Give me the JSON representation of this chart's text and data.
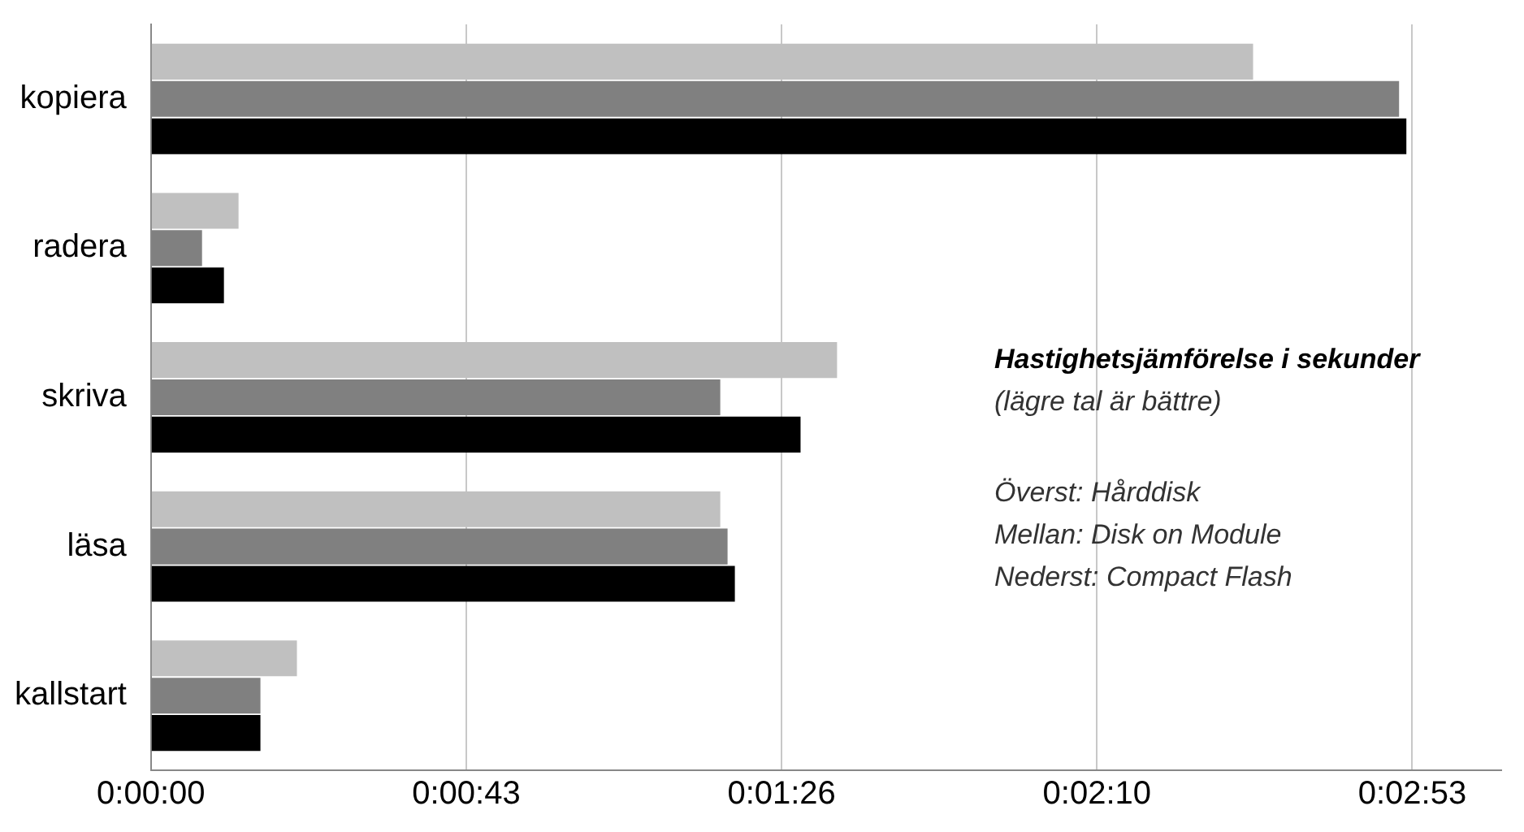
{
  "chart_data": {
    "type": "bar",
    "orientation": "horizontal",
    "categories": [
      "kopiera",
      "radera",
      "skriva",
      "läsa",
      "kallstart"
    ],
    "series": [
      {
        "color": "#c0c0c0",
        "values": [
          151,
          12,
          94,
          78,
          20
        ]
      },
      {
        "color": "#808080",
        "values": [
          171,
          7,
          78,
          79,
          15
        ]
      },
      {
        "color": "#000000",
        "values": [
          172,
          10,
          89,
          80,
          15
        ]
      }
    ],
    "xlim": [
      0,
      185
    ],
    "xticks": [
      {
        "value": 0,
        "label": "0:00:00"
      },
      {
        "value": 43.2,
        "label": "0:00:43"
      },
      {
        "value": 86.4,
        "label": "0:01:26"
      },
      {
        "value": 129.6,
        "label": "0:02:10"
      },
      {
        "value": 172.8,
        "label": "0:02:53"
      }
    ],
    "grid": "x",
    "legend": false,
    "annotations": [
      "Hastighetsjämförelse i sekunder",
      "(lägre tal är bättre)",
      "Överst: Hårddisk",
      "Mellan: Disk on Module",
      "Nederst: Compact Flash"
    ]
  }
}
